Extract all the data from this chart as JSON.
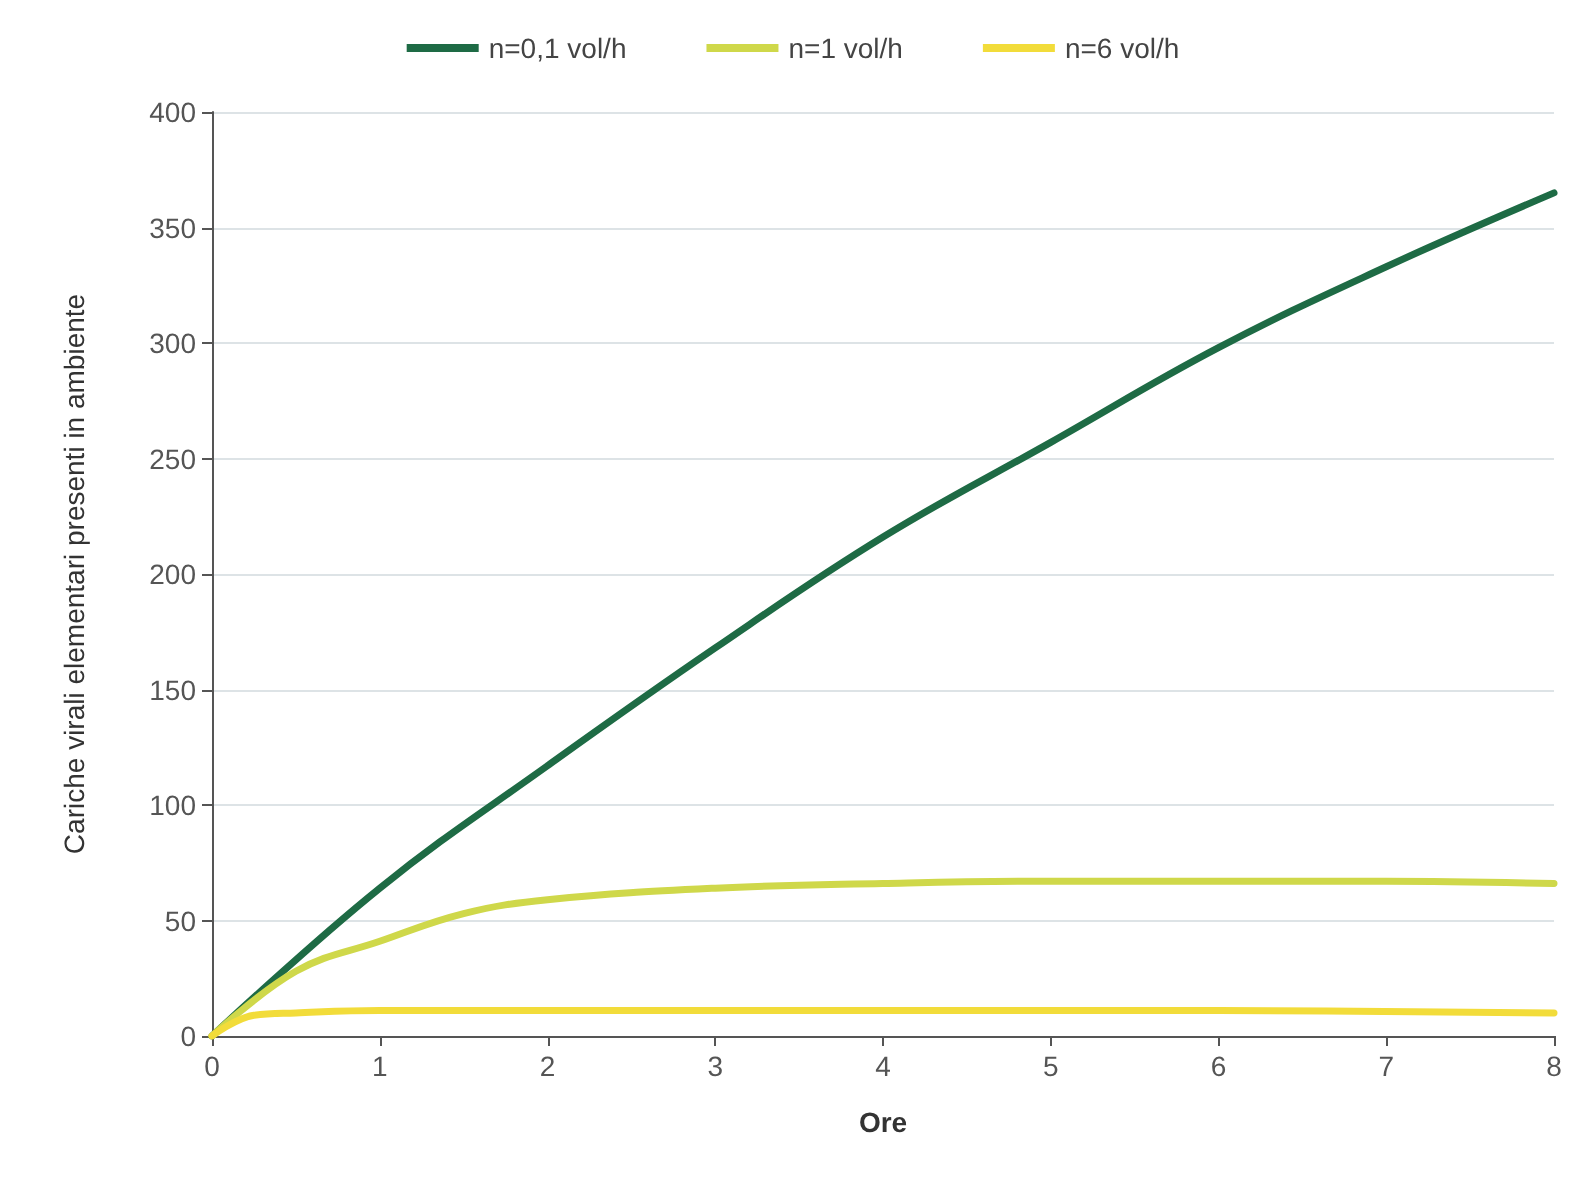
{
  "chart_data": {
    "type": "line",
    "xlabel": "Ore",
    "ylabel": "Cariche virali elementari presenti in ambiente",
    "xlim": [
      0,
      8
    ],
    "xticks": [
      0,
      1,
      2,
      3,
      4,
      5,
      6,
      7,
      8
    ],
    "ylim": [
      0,
      400
    ],
    "yticks": [
      0,
      50,
      100,
      150,
      200,
      250,
      300,
      350,
      400
    ],
    "grid": "y",
    "legend": "top",
    "marker": "none",
    "line_style": "solid",
    "series": [
      {
        "name": "n=0,1 vol/h",
        "color": "#1e6b45",
        "x": [
          0,
          1,
          2,
          3,
          4,
          5,
          6,
          7,
          8
        ],
        "values": [
          0,
          64,
          117,
          168,
          216,
          257,
          298,
          333,
          365
        ]
      },
      {
        "name": "n=1 vol/h",
        "color": "#cfd84a",
        "x": [
          0,
          0.5,
          1,
          1.5,
          2,
          3,
          4,
          5,
          6,
          7,
          8
        ],
        "values": [
          0,
          28,
          41,
          53,
          59,
          64,
          66,
          67,
          67,
          67,
          66
        ]
      },
      {
        "name": "n=6 vol/h",
        "color": "#f2dc3a",
        "x": [
          0,
          0.25,
          0.5,
          1,
          2,
          4,
          6,
          8
        ],
        "values": [
          0,
          9,
          10,
          11,
          11,
          11,
          11,
          10
        ]
      }
    ]
  }
}
